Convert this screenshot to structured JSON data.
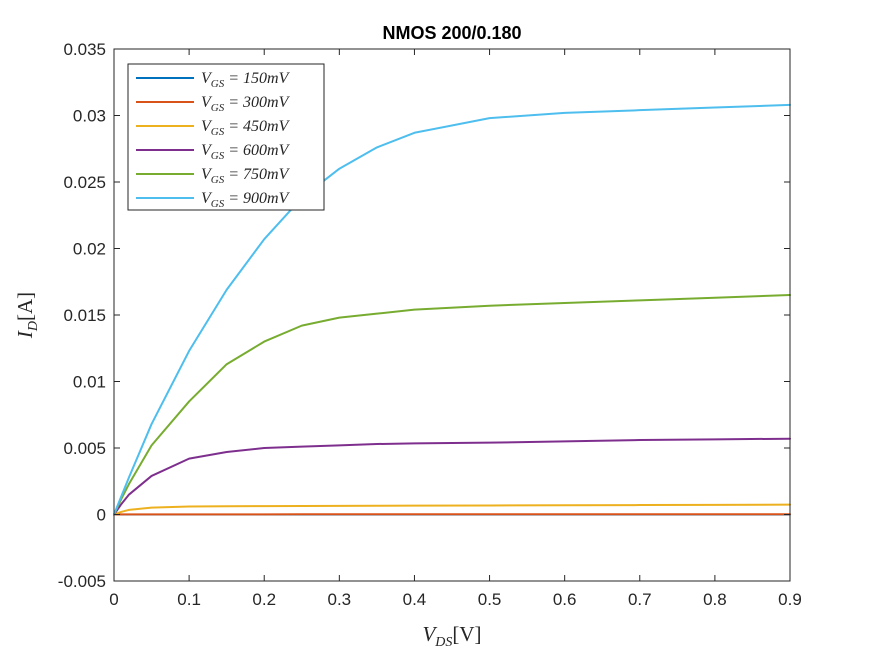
{
  "chart_data": {
    "type": "line",
    "title": "NMOS 200/0.180",
    "xlabel": {
      "main": "V",
      "sub": "DS",
      "unit": "[V]"
    },
    "ylabel": {
      "main": "I",
      "sub": "D",
      "unit": "[A]"
    },
    "xlim": [
      0,
      0.9
    ],
    "ylim": [
      -0.005,
      0.035
    ],
    "xticks": [
      "0",
      "0.1",
      "0.2",
      "0.3",
      "0.4",
      "0.5",
      "0.6",
      "0.7",
      "0.8",
      "0.9"
    ],
    "yticks": [
      "-0.005",
      "0",
      "0.005",
      "0.01",
      "0.015",
      "0.02",
      "0.025",
      "0.03",
      "0.035"
    ],
    "grid": false,
    "legend_position": "top-left",
    "x": [
      0,
      0.01,
      0.02,
      0.05,
      0.1,
      0.15,
      0.2,
      0.25,
      0.3,
      0.35,
      0.4,
      0.5,
      0.6,
      0.7,
      0.8,
      0.9
    ],
    "series": [
      {
        "name": "V_GS = 150mV",
        "label_main": "V",
        "label_sub": "GS",
        "label_rest": " = 150mV",
        "color": "#0072BD",
        "values": [
          0,
          0,
          0,
          0,
          0,
          0,
          0,
          0,
          0,
          0,
          0,
          0,
          0,
          0,
          0,
          0
        ]
      },
      {
        "name": "V_GS = 300mV",
        "label_main": "V",
        "label_sub": "GS",
        "label_rest": " = 300mV",
        "color": "#D95319",
        "values": [
          0,
          5e-06,
          8e-06,
          1e-05,
          1.2e-05,
          1.3e-05,
          1.3e-05,
          1.4e-05,
          1.4e-05,
          1.4e-05,
          1.5e-05,
          1.5e-05,
          1.6e-05,
          1.6e-05,
          1.7e-05,
          1.7e-05
        ]
      },
      {
        "name": "V_GS = 450mV",
        "label_main": "V",
        "label_sub": "GS",
        "label_rest": " = 450mV",
        "color": "#EDB120",
        "values": [
          0,
          0.0002,
          0.00035,
          0.00052,
          0.0006,
          0.00062,
          0.00063,
          0.00064,
          0.00065,
          0.00066,
          0.00067,
          0.00068,
          0.0007,
          0.00071,
          0.00072,
          0.00074
        ]
      },
      {
        "name": "V_GS = 600mV",
        "label_main": "V",
        "label_sub": "GS",
        "label_rest": " = 600mV",
        "color": "#7E2F8E",
        "values": [
          0,
          0.0008,
          0.0015,
          0.0029,
          0.0042,
          0.0047,
          0.005,
          0.0051,
          0.0052,
          0.0053,
          0.00535,
          0.0054,
          0.0055,
          0.0056,
          0.00565,
          0.0057
        ]
      },
      {
        "name": "V_GS = 750mV",
        "label_main": "V",
        "label_sub": "GS",
        "label_rest": " = 750mV",
        "color": "#77AC30",
        "values": [
          0,
          0.0012,
          0.0023,
          0.0052,
          0.0085,
          0.0113,
          0.013,
          0.0142,
          0.0148,
          0.0151,
          0.0154,
          0.0157,
          0.0159,
          0.0161,
          0.0163,
          0.0165
        ]
      },
      {
        "name": "V_GS = 900mV",
        "label_main": "V",
        "label_sub": "GS",
        "label_rest": " = 900mV",
        "color": "#4DBEEE",
        "values": [
          0,
          0.0014,
          0.0028,
          0.0068,
          0.0123,
          0.0169,
          0.0207,
          0.0238,
          0.026,
          0.0276,
          0.0287,
          0.0298,
          0.0302,
          0.0304,
          0.0306,
          0.0308
        ]
      }
    ]
  }
}
